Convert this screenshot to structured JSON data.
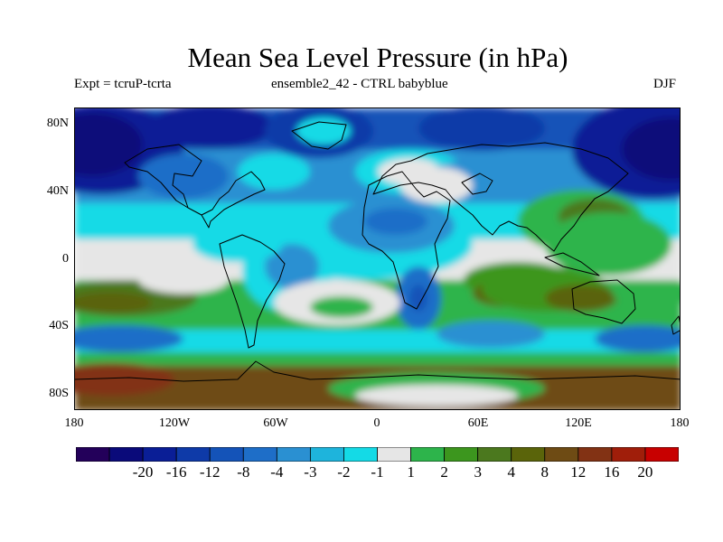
{
  "title": "Mean Sea Level Pressure (in hPa)",
  "subtitle": {
    "left": "Expt = tcruP-tcrta",
    "center": "ensemble2_42 - CTRL babyblue",
    "right": "DJF"
  },
  "axes": {
    "y_ticks": [
      "80N",
      "40N",
      "0",
      "40S",
      "80S"
    ],
    "x_ticks": [
      "180",
      "120W",
      "60W",
      "0",
      "60E",
      "120E",
      "180"
    ]
  },
  "map": {
    "projection": "cylindrical equidistant",
    "lon_range": [
      -180,
      180
    ],
    "lat_range": [
      -90,
      90
    ],
    "variable": "mean sea level pressure difference",
    "units": "hPa",
    "season": "DJF"
  },
  "colorbar": {
    "colors": [
      "#23005a",
      "#0a0a7a",
      "#0a1e96",
      "#0e3aa8",
      "#1453b8",
      "#1e6ec8",
      "#2a90d2",
      "#1eb4dc",
      "#14dae6",
      "#e6e6e6",
      "#2db44b",
      "#3c961e",
      "#4b781e",
      "#5a640a",
      "#6e4b14",
      "#823214",
      "#a01e0a",
      "#c80000"
    ],
    "labels": [
      "-20",
      "-16",
      "-12",
      "-8",
      "-4",
      "-3",
      "-2",
      "-1",
      "1",
      "2",
      "3",
      "4",
      "8",
      "12",
      "16",
      "20"
    ]
  }
}
